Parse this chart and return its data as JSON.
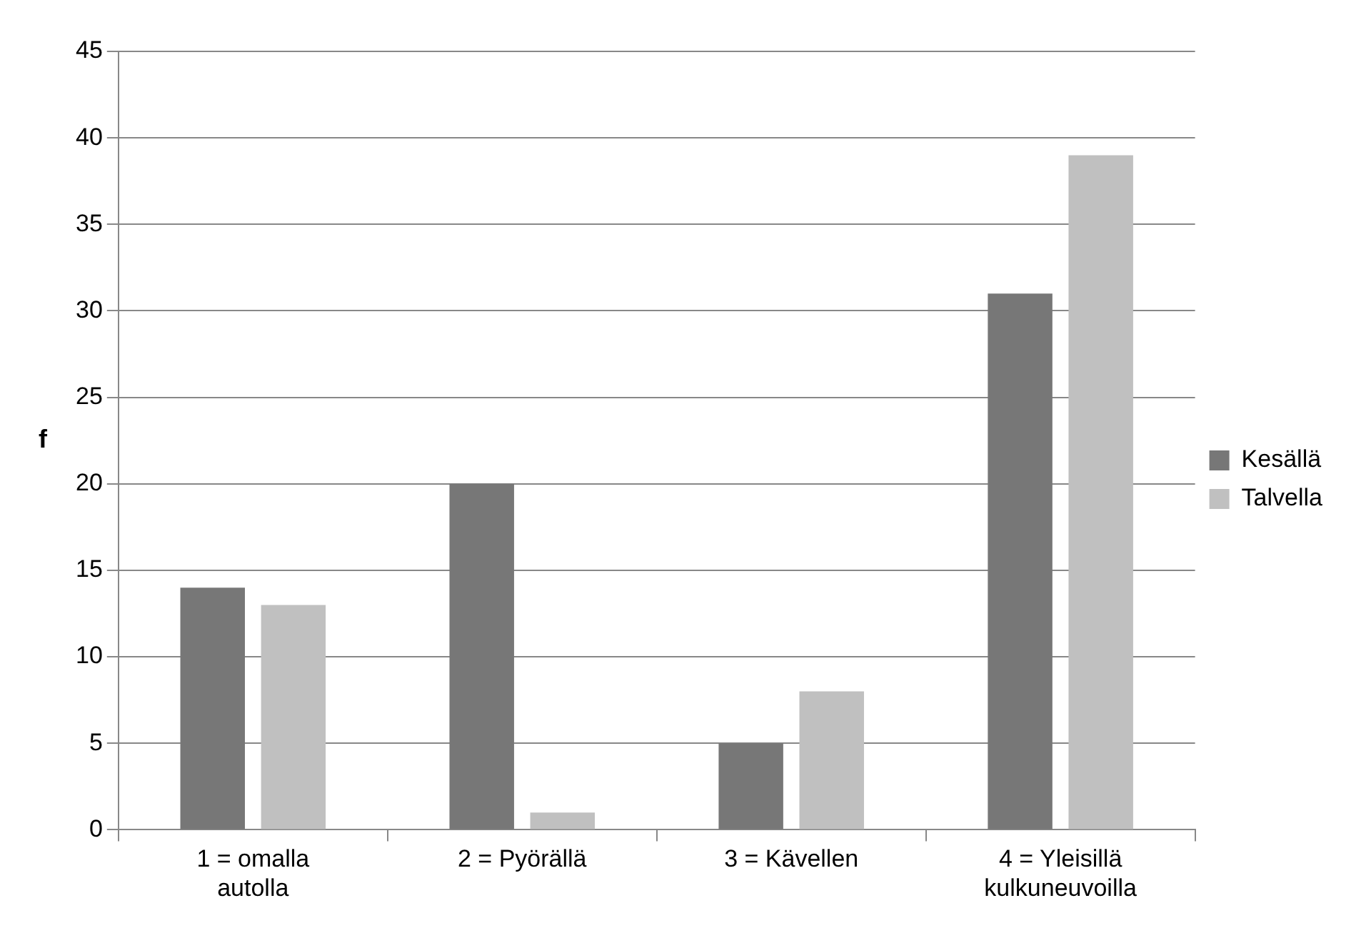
{
  "chart_data": {
    "type": "bar",
    "ylabel": "f",
    "categories": [
      "1 = omalla autolla",
      "2 = Pyörällä",
      "3 = Kävellen",
      "4 = Yleisillä kulkuneuvoilla"
    ],
    "series": [
      {
        "name": "Kesällä",
        "color": "#777777",
        "values": [
          14,
          20,
          5,
          31
        ]
      },
      {
        "name": "Talvella",
        "color": "#c0c0c0",
        "values": [
          13,
          1,
          8,
          39
        ]
      }
    ],
    "ylim": [
      0,
      45
    ],
    "yticks": [
      0,
      5,
      10,
      15,
      20,
      25,
      30,
      35,
      40,
      45
    ],
    "grid": "y",
    "legend": "right"
  }
}
